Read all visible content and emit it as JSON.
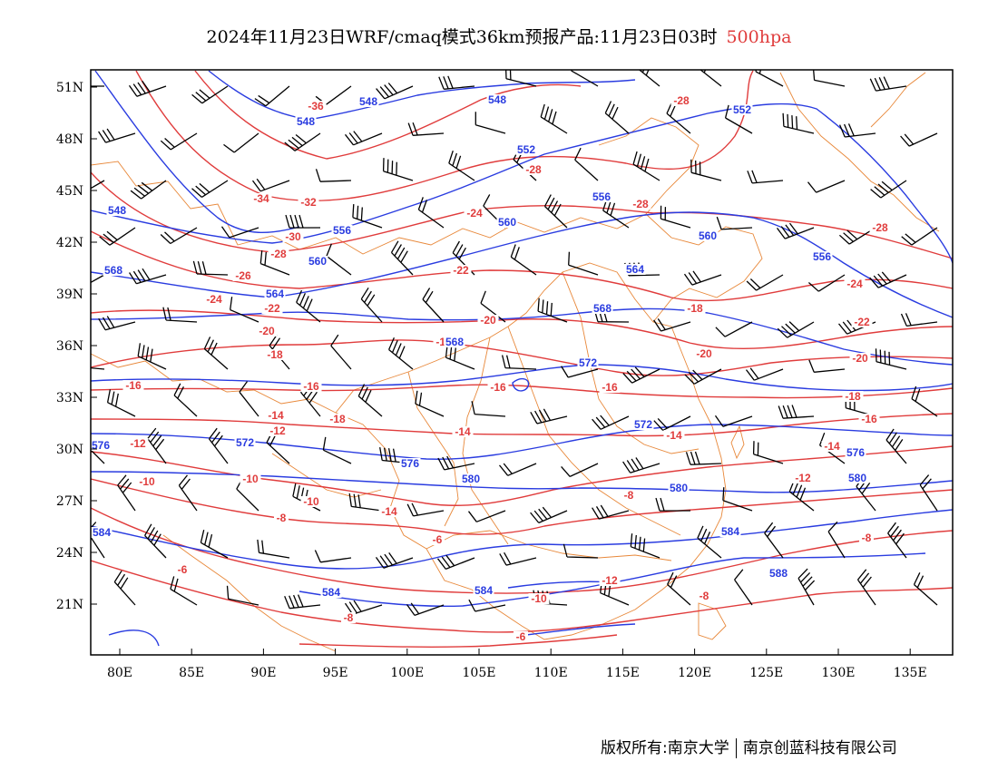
{
  "title": {
    "main": "2024年11月23日WRF/cmaq模式36km预报产品:11月23日03时",
    "level": "500hpa"
  },
  "colors": {
    "temperature": "#e03c3c",
    "height": "#2a3ce0",
    "boundary": "#e8883a",
    "wind": "#000000",
    "frame": "#000000"
  },
  "axes": {
    "lat_labels": [
      "51N",
      "48N",
      "45N",
      "42N",
      "39N",
      "36N",
      "33N",
      "30N",
      "27N",
      "24N",
      "21N"
    ],
    "lon_labels": [
      "80E",
      "85E",
      "90E",
      "95E",
      "100E",
      "105E",
      "110E",
      "115E",
      "120E",
      "125E",
      "130E",
      "135E"
    ]
  },
  "temperature_labels": [
    "-36",
    "-34",
    "-32",
    "-30",
    "-28",
    "-28",
    "-28",
    "-28",
    "-28",
    "-26",
    "-24",
    "-24",
    "-24",
    "-22",
    "-22",
    "-22",
    "-20",
    "-20",
    "-20",
    "-20",
    "-18",
    "-18",
    "-18",
    "-18",
    "-18",
    "-16",
    "-16",
    "-16",
    "-16",
    "-16",
    "-14",
    "-14",
    "-14",
    "-14",
    "-14",
    "-12",
    "-12",
    "-12",
    "-12",
    "-10",
    "-10",
    "-10",
    "-10",
    "-8",
    "-8",
    "-8",
    "-8",
    "-8",
    "-6",
    "-6",
    "-6"
  ],
  "height_labels": [
    "548",
    "548",
    "548",
    "548",
    "552",
    "552",
    "556",
    "556",
    "556",
    "560",
    "560",
    "560",
    "564",
    "564",
    "568",
    "568",
    "568",
    "572",
    "572",
    "572",
    "576",
    "576",
    "576",
    "580",
    "580",
    "580",
    "584",
    "584",
    "584",
    "584",
    "588"
  ],
  "footer": {
    "copyright": "版权所有:南京大学",
    "company": "南京创蓝科技有限公司"
  }
}
